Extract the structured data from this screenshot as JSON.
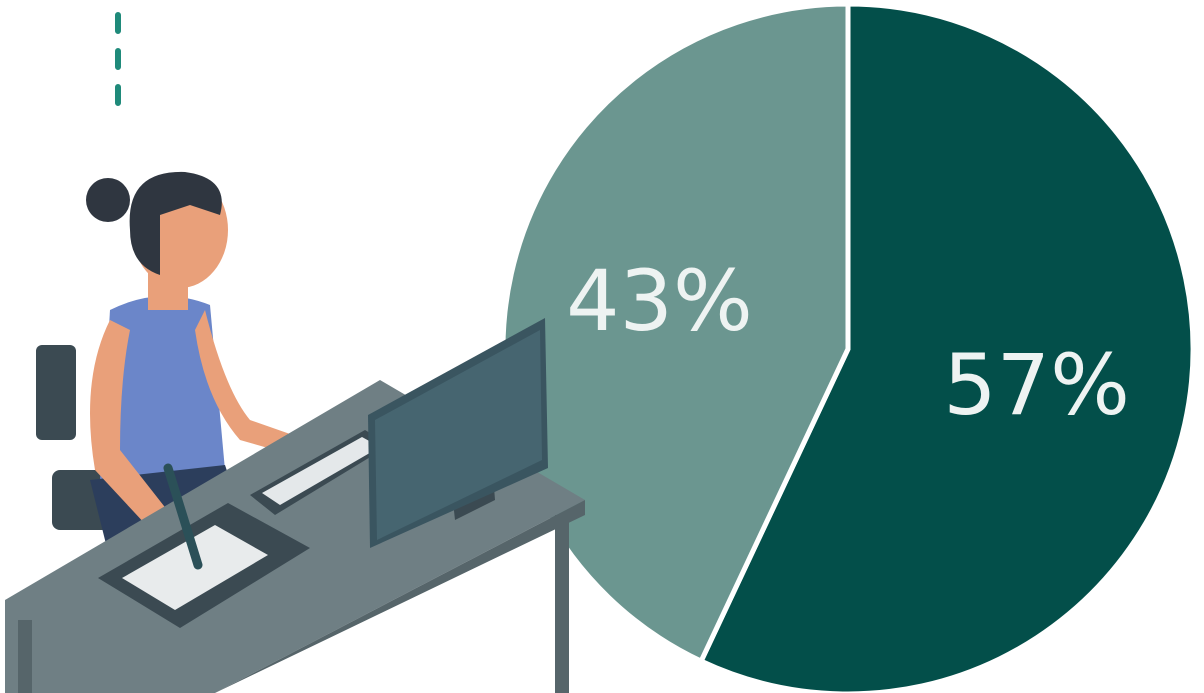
{
  "chart_data": {
    "type": "pie",
    "values": [
      57,
      43
    ],
    "value_labels": [
      "57%",
      "43%"
    ],
    "colors": [
      "#034f4a",
      "#6b9690"
    ]
  }
}
